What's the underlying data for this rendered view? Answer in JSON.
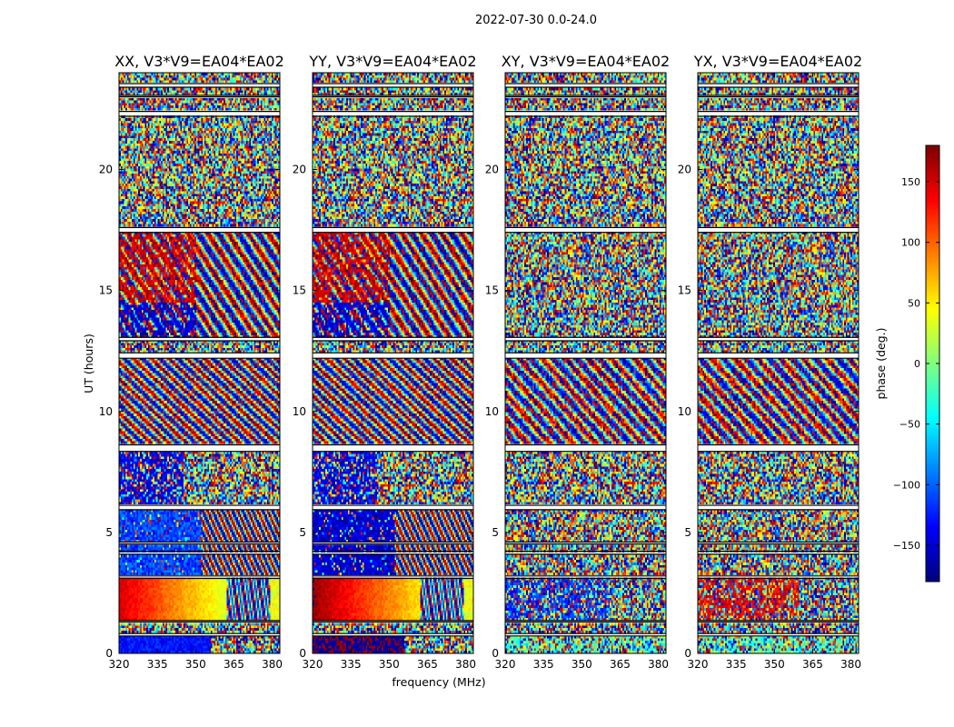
{
  "figure": {
    "suptitle": "2022-07-30 0.0-24.0"
  },
  "chart_data": {
    "type": "heatmap",
    "panels": [
      {
        "title": "XX, V3*V9=EA04*EA02",
        "pol": "XX"
      },
      {
        "title": "YY, V3*V9=EA04*EA02",
        "pol": "YY"
      },
      {
        "title": "XY, V3*V9=EA04*EA02",
        "pol": "XY"
      },
      {
        "title": "YX, V3*V9=EA04*EA02",
        "pol": "YX"
      }
    ],
    "xlabel": "frequency (MHz)",
    "ylabel": "UT (hours)",
    "xlim": [
      320,
      383
    ],
    "ylim": [
      0,
      24
    ],
    "x_ticks": [
      320,
      335,
      350,
      365,
      380
    ],
    "y_ticks": [
      0,
      5,
      10,
      15,
      20
    ],
    "colorbar": {
      "label": "phase (deg.)",
      "range": [
        -180,
        180
      ],
      "ticks": [
        150,
        100,
        50,
        0,
        -50,
        -100,
        -150
      ],
      "tick_labels": [
        "150",
        "100",
        "50",
        "0",
        "−50",
        "−100",
        "−150"
      ],
      "colormap": "jet"
    },
    "gaps_hours": [
      [
        0.72,
        0.82
      ],
      [
        1.3,
        1.36
      ],
      [
        3.1,
        3.2
      ],
      [
        4.1,
        4.22
      ],
      [
        4.52,
        4.6
      ],
      [
        5.94,
        6.12
      ],
      [
        8.35,
        8.62
      ],
      [
        12.2,
        12.42
      ],
      [
        12.92,
        13.06
      ],
      [
        17.4,
        17.6
      ],
      [
        22.2,
        22.4
      ],
      [
        23.0,
        23.06
      ],
      [
        23.4,
        23.55
      ]
    ]
  }
}
